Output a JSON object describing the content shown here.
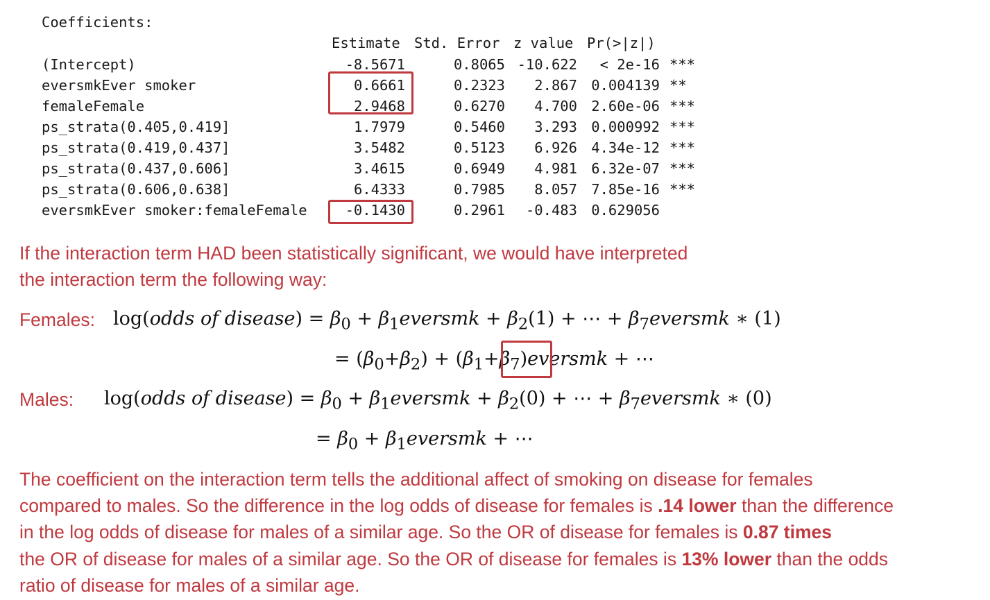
{
  "coef_title": "Coefficients:",
  "header": {
    "estimate": "Estimate",
    "stderr": "Std. Error",
    "zvalue": "z value",
    "pvalue": "Pr(>|z|)"
  },
  "rows": [
    {
      "name": "(Intercept)",
      "est": "-8.5671",
      "se": "0.8065",
      "z": "-10.622",
      "p": "< 2e-16",
      "sig": "***"
    },
    {
      "name": "eversmkEver smoker",
      "est": "0.6661",
      "se": "0.2323",
      "z": "2.867",
      "p": "0.004139",
      "sig": "**"
    },
    {
      "name": "femaleFemale",
      "est": "2.9468",
      "se": "0.6270",
      "z": "4.700",
      "p": "2.60e-06",
      "sig": "***"
    },
    {
      "name": "ps_strata(0.405,0.419]",
      "est": "1.7979",
      "se": "0.5460",
      "z": "3.293",
      "p": "0.000992",
      "sig": "***"
    },
    {
      "name": "ps_strata(0.419,0.437]",
      "est": "3.5482",
      "se": "0.5123",
      "z": "6.926",
      "p": "4.34e-12",
      "sig": "***"
    },
    {
      "name": "ps_strata(0.437,0.606]",
      "est": "3.4615",
      "se": "0.6949",
      "z": "4.981",
      "p": "6.32e-07",
      "sig": "***"
    },
    {
      "name": "ps_strata(0.606,0.638]",
      "est": "6.4333",
      "se": "0.7985",
      "z": "8.057",
      "p": "7.85e-16",
      "sig": "***"
    },
    {
      "name": "eversmkEver smoker:femaleFemale",
      "est": "-0.1430",
      "se": "0.2961",
      "z": "-0.483",
      "p": "0.629056",
      "sig": ""
    }
  ],
  "intro_line1": "If the interaction term HAD been statistically significant, we would have interpreted",
  "intro_line2": "the interaction term the following way:",
  "females_label": "Females:",
  "males_label": "Males:",
  "conclusion": {
    "l1": "The coefficient on the interaction term tells the additional affect of smoking on disease for females",
    "l2a": "compared to males.  So the difference in the log odds of disease for females is ",
    "l2b": ".14 lower",
    "l2c": " than the difference",
    "l3a": "in the log odds of disease for males of a similar age.  So the OR of disease for females is ",
    "l3b": "0.87 times",
    "l4a": "the OR of disease for males of a similar age.  So the OR of disease for females is ",
    "l4b": "13% lower",
    "l4c": " than the odds",
    "l5": "ratio of disease for males of a similar age."
  },
  "colors": {
    "accent": "#c0393f"
  }
}
